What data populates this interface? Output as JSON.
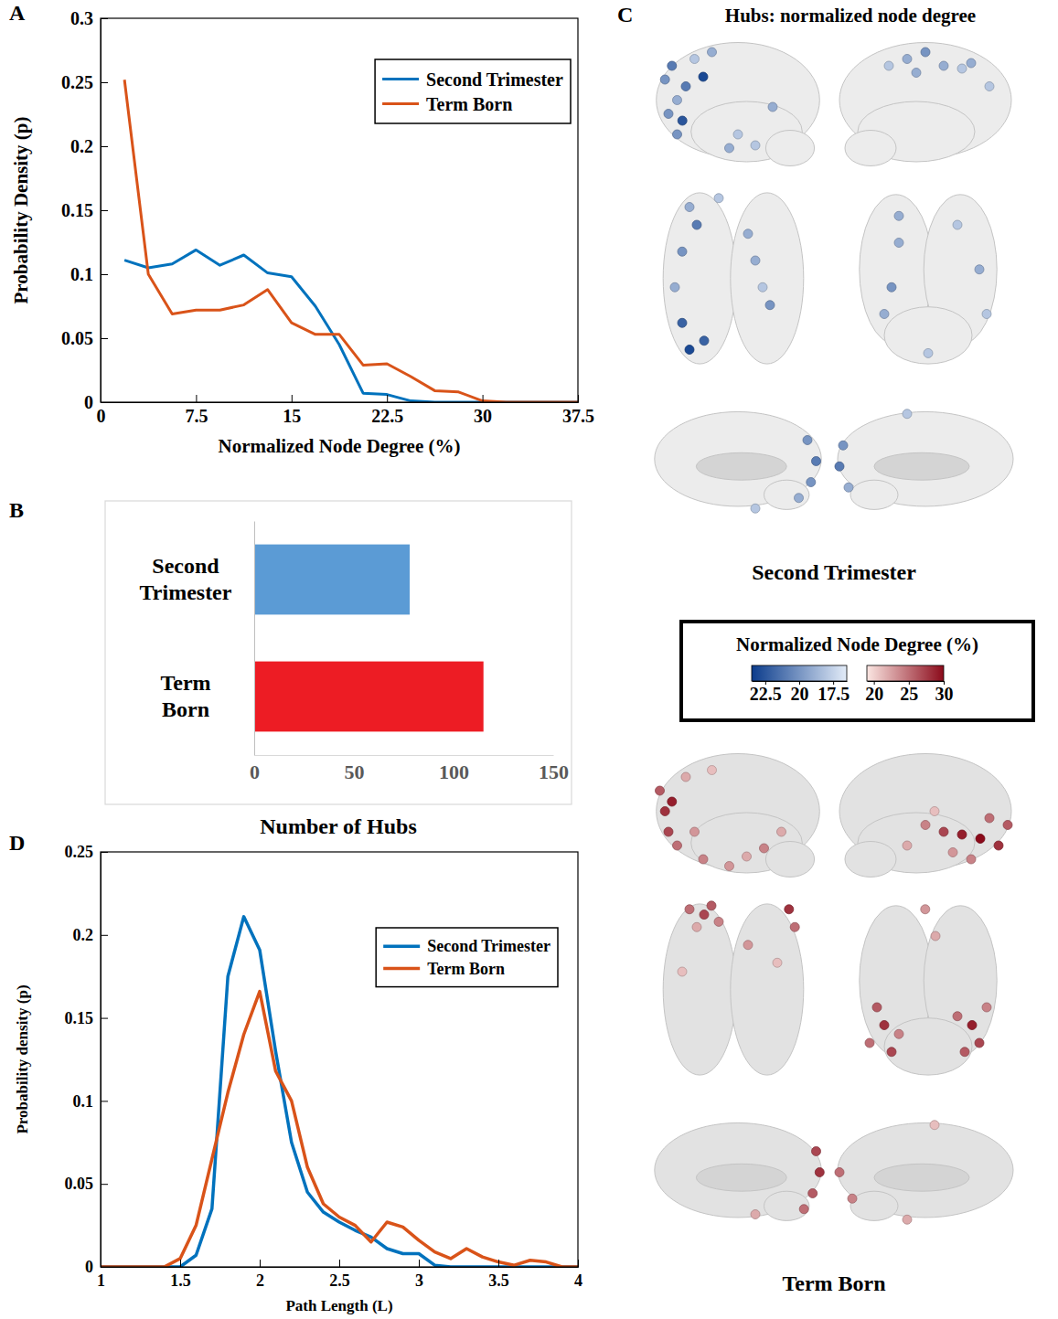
{
  "chart_data": [
    {
      "type": "line",
      "panel": "A",
      "x_label": "Normalized Node Degree (%)",
      "y_label": "Probability Density (p)",
      "x": [
        1.875,
        3.75,
        5.625,
        7.5,
        9.375,
        11.25,
        13.125,
        15,
        16.875,
        18.75,
        20.625,
        22.5,
        24.375,
        26.25,
        28.125,
        30,
        31.875,
        33.75,
        35.625,
        37.5
      ],
      "series": [
        {
          "name": "Second Trimester",
          "color": "#0072bd",
          "values": [
            0.111,
            0.105,
            0.108,
            0.119,
            0.107,
            0.115,
            0.101,
            0.098,
            0.075,
            0.045,
            0.007,
            0.006,
            0.001,
            0,
            0,
            0,
            0,
            0,
            0,
            0
          ]
        },
        {
          "name": "Term Born",
          "color": "#d95319",
          "values": [
            0.252,
            0.1,
            0.069,
            0.072,
            0.072,
            0.076,
            0.088,
            0.062,
            0.053,
            0.053,
            0.029,
            0.03,
            0.02,
            0.009,
            0.008,
            0.001,
            0,
            0,
            0,
            0
          ]
        }
      ],
      "xlim": [
        0,
        37.5
      ],
      "xticks": [
        0,
        7.5,
        15,
        22.5,
        30,
        37.5
      ],
      "ylim": [
        0,
        0.3
      ],
      "yticks": [
        0,
        0.05,
        0.1,
        0.15,
        0.2,
        0.25,
        0.3
      ],
      "grid": false,
      "legend": "top-right"
    },
    {
      "type": "bar",
      "panel": "B",
      "orientation": "horizontal",
      "categories": [
        "Second Trimester",
        "Term Born"
      ],
      "values": [
        78,
        115
      ],
      "colors": [
        "#5b9bd5",
        "#ed1c24"
      ],
      "x_label": "Number of Hubs",
      "xlim": [
        0,
        150
      ],
      "xticks": [
        0,
        50,
        100,
        150
      ],
      "grid": false
    },
    {
      "type": "scatter",
      "panel": "C",
      "title": "Hubs: normalized node degree",
      "colorbar_title": "Normalized Node Degree (%)",
      "xlim": [
        0,
        100
      ],
      "ylim": [
        0,
        100
      ],
      "tick_labels": false,
      "groups": [
        {
          "name": "Second Trimester",
          "color": "#0b3c8c",
          "colorbar": {
            "range": [
              23.5,
              16.5
            ],
            "ticks": [
              22.5,
              20,
              17.5
            ]
          },
          "views": [
            {
              "x": [
                8,
                12,
                15,
                10,
                18,
                25,
                35,
                20,
                50,
                45,
                60,
                70,
                30,
                15
              ],
              "y": [
                30,
                20,
                45,
                55,
                60,
                15,
                10,
                35,
                70,
                80,
                78,
                50,
                28,
                70
              ],
              "values": [
                20,
                21,
                19,
                20,
                22.5,
                18,
                19,
                21,
                18,
                19,
                18,
                19,
                23,
                20
              ]
            },
            {
              "x": [
                40,
                50,
                60,
                70,
                75,
                30,
                45,
                85
              ],
              "y": [
                15,
                10,
                20,
                22,
                18,
                20,
                25,
                35
              ],
              "values": [
                19,
                20,
                19,
                18,
                19,
                18,
                19,
                18
              ]
            },
            {
              "x": [
                20,
                25,
                15,
                10,
                15,
                20,
                65,
                70,
                75,
                60,
                40,
                30
              ],
              "y": [
                10,
                20,
                35,
                55,
                75,
                90,
                40,
                55,
                65,
                25,
                5,
                85
              ],
              "values": [
                19,
                21,
                20,
                19,
                22,
                23,
                19,
                18,
                20,
                19,
                18,
                22
              ]
            },
            {
              "x": [
                30,
                70,
                85,
                25,
                20,
                50,
                90,
                30
              ],
              "y": [
                30,
                20,
                45,
                55,
                70,
                92,
                70,
                15
              ],
              "values": [
                19,
                18,
                19,
                20,
                19,
                18,
                18,
                19
              ]
            },
            {
              "x": [
                90,
                95,
                92,
                85,
                60
              ],
              "y": [
                30,
                50,
                70,
                85,
                95
              ],
              "values": [
                20,
                21,
                20,
                19,
                18
              ]
            },
            {
              "x": [
                5,
                3,
                8,
                40
              ],
              "y": [
                35,
                55,
                75,
                5
              ],
              "values": [
                20,
                21,
                19,
                18
              ]
            }
          ]
        },
        {
          "name": "Term Born",
          "color": "#8b0a1a",
          "colorbar": {
            "range": [
              19,
              30
            ],
            "ticks": [
              20,
              25,
              30
            ]
          },
          "views": [
            {
              "x": [
                5,
                8,
                10,
                15,
                30,
                45,
                55,
                65,
                75,
                35,
                20,
                12,
                25
              ],
              "y": [
                30,
                45,
                60,
                70,
                80,
                85,
                78,
                72,
                60,
                15,
                20,
                38,
                60
              ],
              "values": [
                26,
                28,
                27,
                25,
                24,
                23,
                22,
                24,
                22,
                21,
                22,
                29,
                23
              ]
            },
            {
              "x": [
                50,
                60,
                70,
                80,
                90,
                95,
                85,
                65,
                75,
                40,
                55
              ],
              "y": [
                55,
                60,
                62,
                65,
                70,
                55,
                50,
                75,
                80,
                70,
                45
              ],
              "values": [
                24,
                27,
                29,
                30,
                28,
                26,
                25,
                23,
                24,
                22,
                21
              ]
            },
            {
              "x": [
                20,
                30,
                40,
                25,
                35,
                15,
                60,
                88,
                92,
                80
              ],
              "y": [
                5,
                8,
                12,
                15,
                3,
                40,
                25,
                5,
                15,
                35
              ],
              "values": [
                25,
                27,
                24,
                22,
                26,
                21,
                23,
                28,
                25,
                21
              ]
            },
            {
              "x": [
                15,
                20,
                10,
                25,
                30,
                70,
                80,
                85,
                75,
                90,
                55,
                48
              ],
              "y": [
                60,
                70,
                80,
                85,
                75,
                65,
                70,
                80,
                85,
                60,
                20,
                5
              ],
              "values": [
                26,
                28,
                25,
                27,
                24,
                25,
                29,
                27,
                26,
                24,
                22,
                23
              ]
            },
            {
              "x": [
                95,
                97,
                93,
                88,
                60
              ],
              "y": [
                30,
                50,
                70,
                85,
                90
              ],
              "values": [
                27,
                28,
                26,
                25,
                22
              ]
            },
            {
              "x": [
                3,
                10,
                40,
                55
              ],
              "y": [
                50,
                75,
                95,
                5
              ],
              "values": [
                25,
                24,
                22,
                21
              ]
            }
          ]
        }
      ]
    },
    {
      "type": "line",
      "panel": "D",
      "x_label": "Path Length (L)",
      "y_label": "Probability density (p)",
      "x": [
        1,
        1.1,
        1.2,
        1.3,
        1.4,
        1.5,
        1.6,
        1.7,
        1.8,
        1.9,
        2,
        2.1,
        2.2,
        2.3,
        2.4,
        2.5,
        2.6,
        2.7,
        2.8,
        2.9,
        3,
        3.1,
        3.2,
        3.3,
        3.4,
        3.5,
        3.6,
        3.7,
        3.8,
        3.9,
        4
      ],
      "series": [
        {
          "name": "Second Trimester",
          "color": "#0072bd",
          "values": [
            0,
            0,
            0,
            0,
            0,
            0,
            0.007,
            0.035,
            0.175,
            0.211,
            0.191,
            0.13,
            0.075,
            0.045,
            0.033,
            0.027,
            0.022,
            0.018,
            0.011,
            0.008,
            0.008,
            0.001,
            0,
            0,
            0,
            0,
            0,
            0,
            0,
            0,
            0
          ]
        },
        {
          "name": "Term Born",
          "color": "#d95319",
          "values": [
            0,
            0,
            0,
            0,
            0,
            0.005,
            0.025,
            0.065,
            0.105,
            0.14,
            0.166,
            0.118,
            0.1,
            0.06,
            0.038,
            0.03,
            0.025,
            0.015,
            0.027,
            0.024,
            0.016,
            0.009,
            0.005,
            0.011,
            0.006,
            0.003,
            0.001,
            0.004,
            0.003,
            0,
            0
          ]
        }
      ],
      "xlim": [
        1,
        4
      ],
      "xticks": [
        1,
        1.5,
        2,
        2.5,
        3,
        3.5,
        4
      ],
      "ylim": [
        0,
        0.25
      ],
      "yticks": [
        0,
        0.05,
        0.1,
        0.15,
        0.2,
        0.25
      ],
      "grid": false,
      "legend": "top-right"
    }
  ]
}
